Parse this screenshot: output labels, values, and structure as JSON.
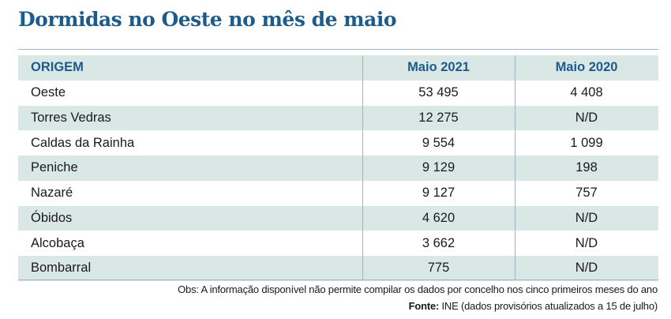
{
  "title": "Dormidas no Oeste no mês de maio",
  "table": {
    "headers": [
      "ORIGEM",
      "Maio 2021",
      "Maio 2020"
    ],
    "rows": [
      {
        "origem": "Oeste",
        "maio2021": "53 495",
        "maio2020": "4 408"
      },
      {
        "origem": "Torres Vedras",
        "maio2021": "12 275",
        "maio2020": "N/D"
      },
      {
        "origem": "Caldas da Rainha",
        "maio2021": "9 554",
        "maio2020": "1 099"
      },
      {
        "origem": "Peniche",
        "maio2021": "9 129",
        "maio2020": "198"
      },
      {
        "origem": "Nazaré",
        "maio2021": "9 127",
        "maio2020": "757"
      },
      {
        "origem": "Óbidos",
        "maio2021": "4 620",
        "maio2020": "N/D"
      },
      {
        "origem": "Alcobaça",
        "maio2021": "3 662",
        "maio2020": "N/D"
      },
      {
        "origem": "Bombarral",
        "maio2021": "775",
        "maio2020": "N/D"
      }
    ]
  },
  "notes": {
    "obs": "Obs: A informação disponível não permite compilar os dados por concelho nos cinco primeiros meses do ano",
    "source_label": "Fonte:",
    "source_text": " INE (dados provisórios atualizados a 15 de julho)"
  },
  "colors": {
    "title": "#1d5b8c",
    "header_text": "#1d5b8c",
    "shade": "#d9e8e5",
    "rule": "#9fb3c4"
  }
}
